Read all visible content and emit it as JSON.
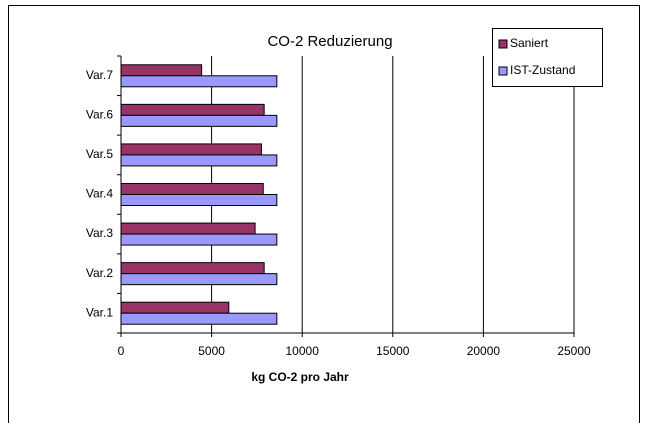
{
  "chart_data": {
    "type": "hbar",
    "title": "CO-2 Reduzierung",
    "categories": [
      "Var.1",
      "Var.2",
      "Var.3",
      "Var.4",
      "Var.5",
      "Var.6",
      "Var.7"
    ],
    "series": [
      {
        "name": "Saniert",
        "color": "#993366",
        "values": [
          5950,
          7900,
          7400,
          7850,
          7750,
          7900,
          4450
        ]
      },
      {
        "name": "IST-Zustand",
        "color": "#9999ff",
        "values": [
          8600,
          8600,
          8600,
          8600,
          8600,
          8600,
          8600
        ]
      }
    ],
    "xlabel": "kg CO-2 pro Jahr",
    "xlim": [
      0,
      25000
    ],
    "xticks": [
      0,
      5000,
      10000,
      15000,
      20000,
      25000
    ],
    "grid": true,
    "legend": "top-right"
  }
}
